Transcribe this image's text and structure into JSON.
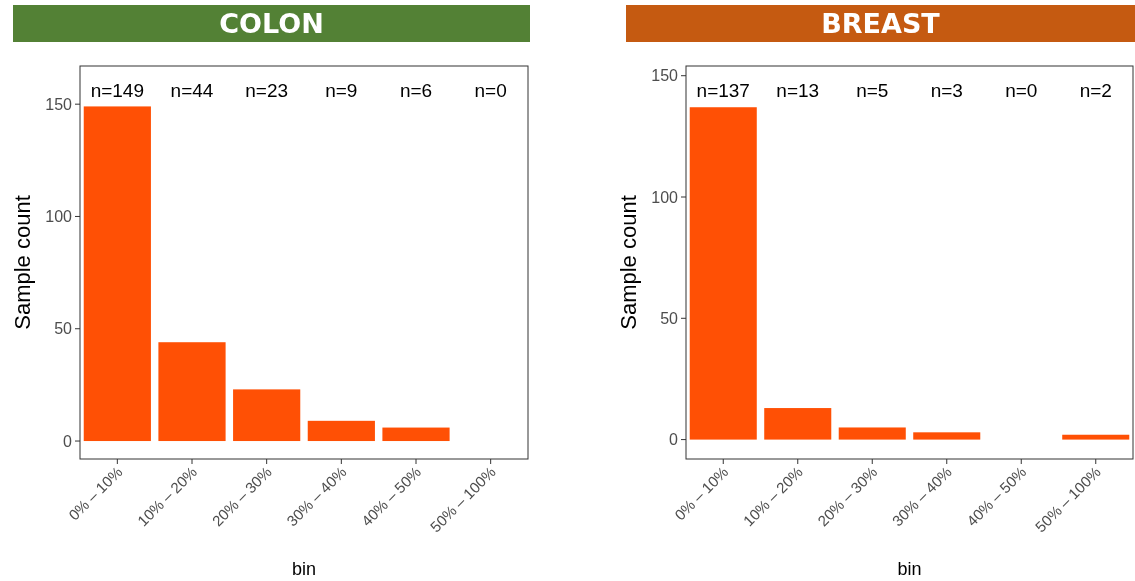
{
  "chart_data": [
    {
      "type": "bar",
      "title": "COLON",
      "xlabel": "bin",
      "ylabel": "Sample count",
      "categories": [
        "0% – 10%",
        "10% – 20%",
        "20% – 30%",
        "30% – 40%",
        "40% – 50%",
        "50% – 100%"
      ],
      "values": [
        149,
        44,
        23,
        9,
        6,
        0
      ],
      "color": "#ff5005",
      "ylim": [
        -8,
        167
      ],
      "yticks": [
        0,
        50,
        100,
        150
      ],
      "annotations": [
        "n=149",
        "n=44",
        "n=23",
        "n=9",
        "n=6",
        "n=0"
      ]
    },
    {
      "type": "bar",
      "title": "BREAST",
      "xlabel": "bin",
      "ylabel": "Sample count",
      "categories": [
        "0% – 10%",
        "10% – 20%",
        "20% – 30%",
        "30% – 40%",
        "40% – 50%",
        "50% – 100%"
      ],
      "values": [
        137,
        13,
        5,
        3,
        0,
        2
      ],
      "color": "#ff5005",
      "ylim": [
        -8,
        154
      ],
      "yticks": [
        0,
        50,
        100,
        150
      ],
      "annotations": [
        "n=137",
        "n=13",
        "n=5",
        "n=3",
        "n=0",
        "n=2"
      ]
    }
  ]
}
